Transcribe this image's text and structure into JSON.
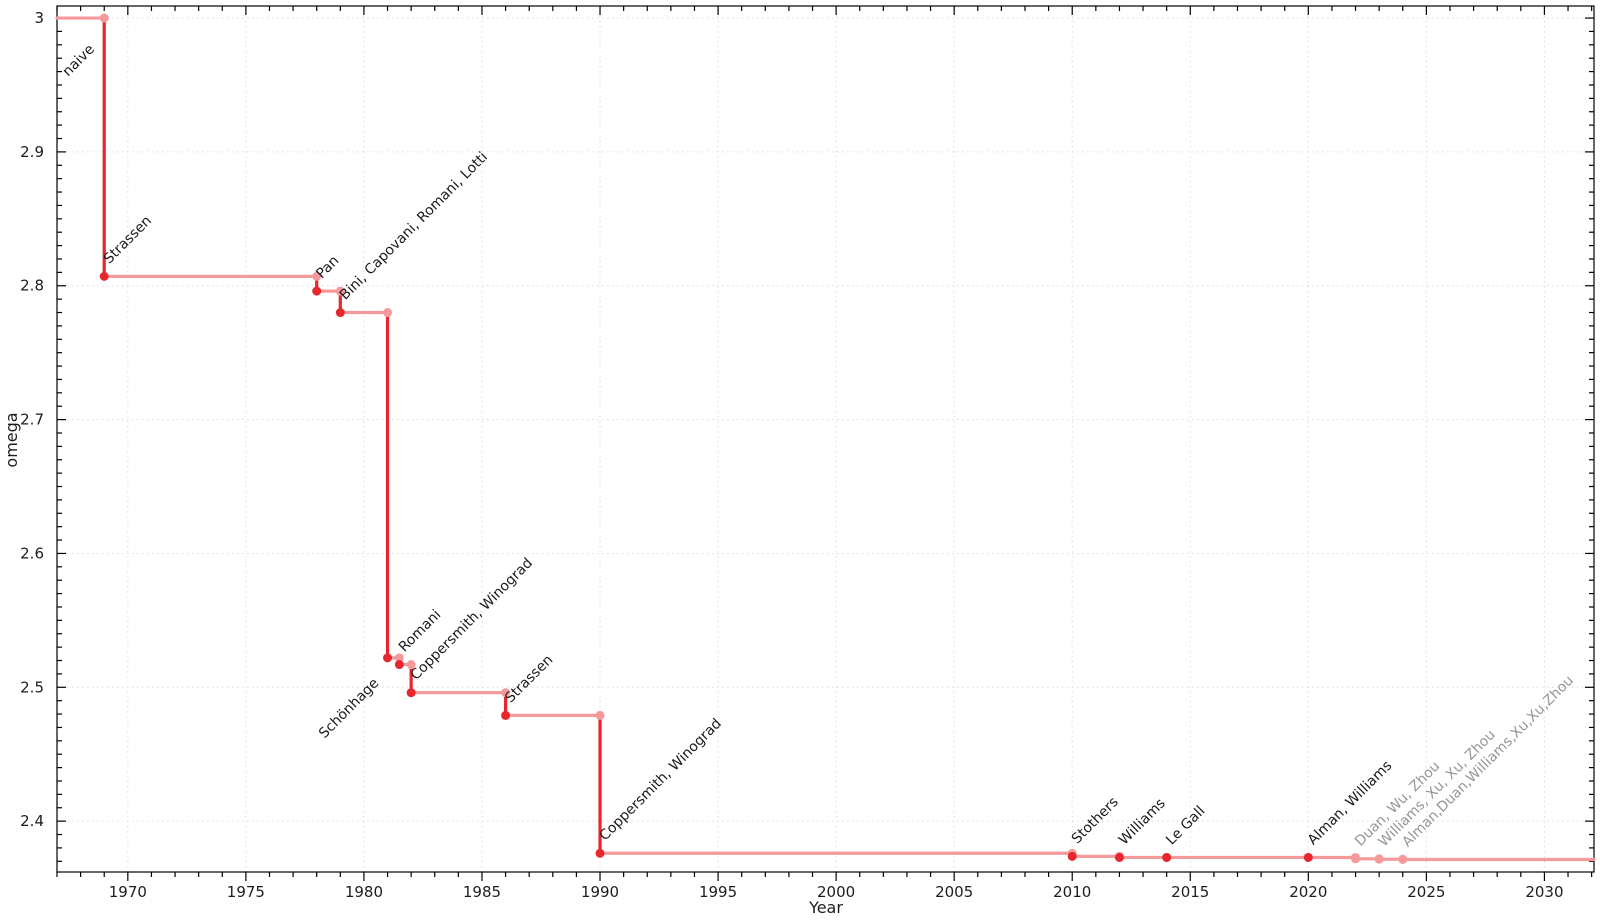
{
  "figure": {
    "background": "#ffffff",
    "border_color": "#000000",
    "grid_color": "#dcdcdc",
    "tick_label_color": "#1d1d1d"
  },
  "chart_data": {
    "type": "line",
    "subtype": "step-post-with-markers",
    "title": "",
    "xlabel": "Year",
    "ylabel": "omega",
    "xlim": [
      1967,
      2032.1
    ],
    "ylim": [
      2.362,
      3.009
    ],
    "x_major_ticks": [
      1970,
      1975,
      1980,
      1985,
      1990,
      1995,
      2000,
      2005,
      2010,
      2015,
      2020,
      2025,
      2030
    ],
    "x_minor_step": 1,
    "y_major_ticks": [
      "3",
      "2.9",
      "2.8",
      "2.7",
      "2.6",
      "2.5",
      "2.4"
    ],
    "y_minor_step": 0.01,
    "grid": "dotted-major-both-axes",
    "legend": "none",
    "colors": {
      "trace": "#f59a9b",
      "drop": "#e8262d",
      "marker_strong": "#e8262d",
      "marker_recent": "#f59a9b",
      "label_strong": "#1a1a1a",
      "label_recent": "#969696"
    },
    "initial": {
      "label": "naive",
      "omega": 3,
      "label_anchor_year": 1967.47,
      "label_anchor_omega": 2.956
    },
    "events": [
      {
        "year": 1969,
        "omega": 2.807,
        "label": "Strassen",
        "recent": false,
        "label_side": "above"
      },
      {
        "year": 1978,
        "omega": 2.796,
        "label": "Pan",
        "recent": false,
        "label_side": "above"
      },
      {
        "year": 1979,
        "omega": 2.78,
        "label": "Bini, Capovani, Romani, Lotti",
        "recent": false,
        "label_side": "above"
      },
      {
        "year": 1981,
        "omega": 2.522,
        "label": "Schönhage",
        "recent": false,
        "label_side": "below"
      },
      {
        "year": 1981.5,
        "omega": 2.517,
        "label": "Romani",
        "recent": false,
        "label_side": "above"
      },
      {
        "year": 1982,
        "omega": 2.496,
        "label": "Coppersmith, Winograd",
        "recent": false,
        "label_side": "above"
      },
      {
        "year": 1986,
        "omega": 2.479,
        "label": "Strassen",
        "recent": false,
        "label_side": "above"
      },
      {
        "year": 1990,
        "omega": 2.376,
        "label": "Coppersmith, Winograd",
        "recent": false,
        "label_side": "above"
      },
      {
        "year": 2010,
        "omega": 2.3737,
        "label": "Stothers",
        "recent": false,
        "label_side": "above"
      },
      {
        "year": 2012,
        "omega": 2.372873,
        "label": "Williams",
        "recent": false,
        "label_side": "above"
      },
      {
        "year": 2014,
        "omega": 2.3728639,
        "label": "Le Gall",
        "recent": false,
        "label_side": "above"
      },
      {
        "year": 2020,
        "omega": 2.3728596,
        "label": "Alman, Williams",
        "recent": false,
        "label_side": "above"
      },
      {
        "year": 2022,
        "omega": 2.371866,
        "label": "Duan, Wu, Zhou",
        "recent": true,
        "label_side": "above"
      },
      {
        "year": 2023,
        "omega": 2.371552,
        "label": "Williams, Xu, Xu, Zhou",
        "recent": true,
        "label_side": "above"
      },
      {
        "year": 2024,
        "omega": 2.371339,
        "label": "Alman,Duan,Williams,Xu,Xu,Zhou",
        "recent": true,
        "label_side": "above"
      }
    ]
  }
}
